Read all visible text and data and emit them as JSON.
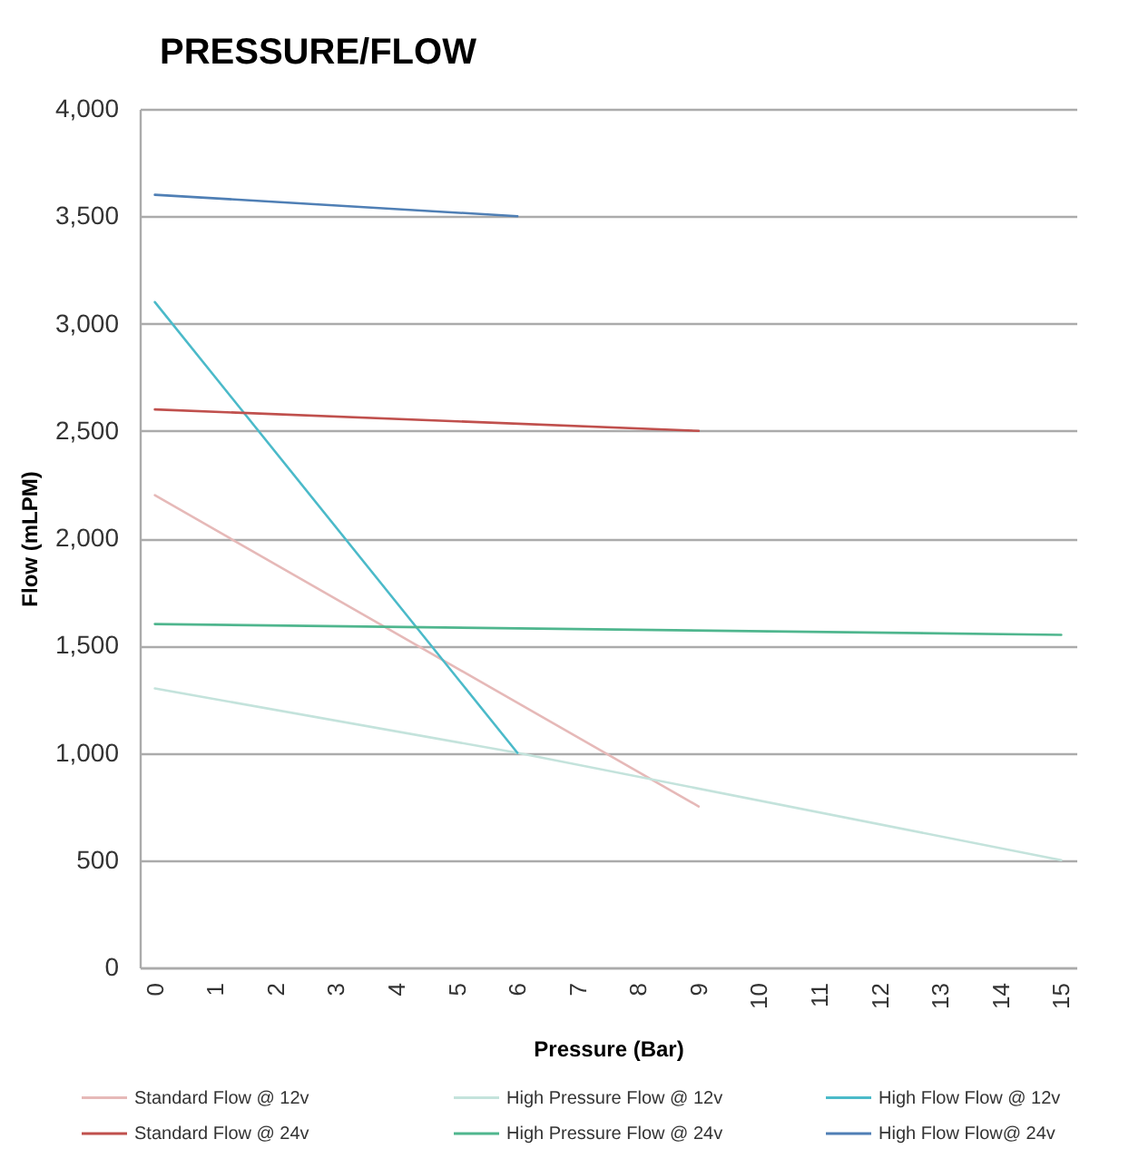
{
  "chart_data": {
    "type": "line",
    "title": "PRESSURE/FLOW",
    "xlabel": "Pressure (Bar)",
    "ylabel": "Flow (mLPM)",
    "xlim": [
      -0.25,
      15.25
    ],
    "xticks": [
      0,
      1,
      2,
      3,
      4,
      5,
      6,
      7,
      8,
      9,
      10,
      11,
      12,
      13,
      14,
      15
    ],
    "ylim": [
      0,
      4000
    ],
    "yticks": [
      0,
      500,
      {
        "value": 1000,
        "label": "1,000"
      },
      {
        "value": 1500,
        "label": "1,500"
      },
      {
        "value": 2000,
        "label": "2,000"
      },
      {
        "value": 2500,
        "label": "2,500"
      },
      {
        "value": 3000,
        "label": "3,000"
      },
      {
        "value": 3500,
        "label": "3,500"
      },
      {
        "value": 4000,
        "label": "4,000"
      }
    ],
    "grid": "y",
    "legend": "bottom",
    "marker": "none",
    "line_style": "solid",
    "series": [
      {
        "name": "Standard Flow @ 12v",
        "color": "#e6b9b8",
        "x": [
          0,
          9
        ],
        "values": [
          2200,
          750
        ]
      },
      {
        "name": "High Pressure Flow @ 12v",
        "color": "#c4e3dc",
        "x": [
          0,
          6,
          15
        ],
        "values": [
          1300,
          1000,
          500
        ]
      },
      {
        "name": "High Flow Flow @ 12v",
        "color": "#4bbac9",
        "x": [
          0,
          6
        ],
        "values": [
          3100,
          1000
        ]
      },
      {
        "name": "Standard Flow @ 24v",
        "color": "#c0504d",
        "x": [
          0,
          9
        ],
        "values": [
          2600,
          2500
        ]
      },
      {
        "name": "High Pressure Flow @ 24v",
        "color": "#4fb68e",
        "x": [
          0,
          15
        ],
        "values": [
          1600,
          1550
        ]
      },
      {
        "name": "High Flow Flow@ 24v",
        "color": "#4f7fb5",
        "x": [
          0,
          6
        ],
        "values": [
          3600,
          3500
        ]
      }
    ]
  }
}
